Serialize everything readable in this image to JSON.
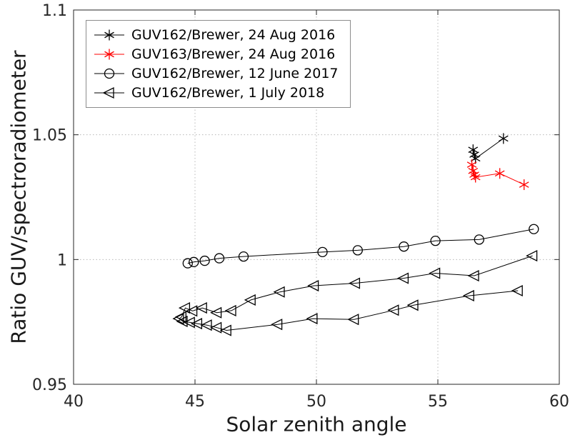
{
  "chart_data": {
    "type": "line",
    "title": "",
    "xlabel": "Solar zenith angle",
    "ylabel": "Ratio GUV/spectroradiometer",
    "xlim": [
      40,
      60
    ],
    "ylim": [
      0.95,
      1.1
    ],
    "xticks": [
      40,
      45,
      50,
      55,
      60
    ],
    "yticks": [
      0.95,
      1.0,
      1.05,
      1.1
    ],
    "xtick_labels": [
      "40",
      "45",
      "50",
      "55",
      "60"
    ],
    "ytick_labels": [
      "0.95",
      "1",
      "1.05",
      "1.1"
    ],
    "grid": true,
    "legend_position": "top-left",
    "colors": {
      "axis": "#262626",
      "grid": "#b8b8b8",
      "black": "#000000",
      "red": "#ff0000"
    },
    "series": [
      {
        "name": "GUV162/Brewer, 24 Aug 2016",
        "marker": "asterisk",
        "color": "#000000",
        "points": [
          [
            56.45,
            1.044
          ],
          [
            56.5,
            1.042
          ],
          [
            56.55,
            1.0405
          ],
          [
            57.7,
            1.0485
          ]
        ]
      },
      {
        "name": "GUV163/Brewer, 24 Aug 2016",
        "marker": "asterisk",
        "color": "#ff0000",
        "points": [
          [
            56.4,
            1.038
          ],
          [
            56.45,
            1.0355
          ],
          [
            56.5,
            1.034
          ],
          [
            56.55,
            1.033
          ],
          [
            57.55,
            1.0345
          ],
          [
            58.55,
            1.03
          ]
        ]
      },
      {
        "name": "GUV162/Brewer, 12 June 2017",
        "marker": "circle",
        "color": "#000000",
        "points": [
          [
            44.7,
            0.9985
          ],
          [
            44.95,
            0.999
          ],
          [
            45.4,
            0.9995
          ],
          [
            46.0,
            1.0005
          ],
          [
            47.0,
            1.0012
          ],
          [
            50.25,
            1.003
          ],
          [
            51.7,
            1.0037
          ],
          [
            53.6,
            1.0052
          ],
          [
            54.9,
            1.0075
          ],
          [
            56.7,
            1.008
          ],
          [
            58.95,
            1.0122
          ]
        ]
      },
      {
        "name": "GUV162/Brewer, 1 July 2018",
        "marker": "triangle-left",
        "color": "#000000",
        "points": [
          [
            58.9,
            1.0015
          ],
          [
            56.5,
            0.9935
          ],
          [
            54.9,
            0.9945
          ],
          [
            53.6,
            0.9925
          ],
          [
            51.6,
            0.9905
          ],
          [
            49.9,
            0.9895
          ],
          [
            48.5,
            0.987
          ],
          [
            47.3,
            0.9838
          ],
          [
            46.5,
            0.9795
          ],
          [
            45.9,
            0.9787
          ],
          [
            45.3,
            0.9806
          ],
          [
            44.9,
            0.9794
          ],
          [
            44.6,
            0.9806
          ],
          [
            44.45,
            0.977
          ],
          [
            44.35,
            0.9763
          ],
          [
            44.5,
            0.9752
          ],
          [
            44.8,
            0.9748
          ],
          [
            45.1,
            0.9743
          ],
          [
            45.5,
            0.9737
          ],
          [
            45.9,
            0.9727
          ],
          [
            46.3,
            0.9716
          ],
          [
            48.4,
            0.974
          ],
          [
            49.85,
            0.9763
          ],
          [
            51.55,
            0.976
          ],
          [
            53.2,
            0.9797
          ],
          [
            54.0,
            0.9817
          ],
          [
            56.3,
            0.9855
          ],
          [
            58.3,
            0.9875
          ]
        ]
      }
    ]
  }
}
